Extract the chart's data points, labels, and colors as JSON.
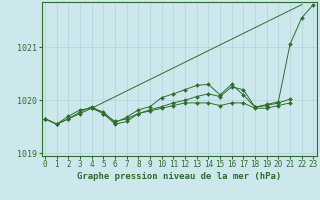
{
  "title": "Graphe pression niveau de la mer (hPa)",
  "hours": [
    0,
    1,
    2,
    3,
    4,
    5,
    6,
    7,
    8,
    9,
    10,
    11,
    12,
    13,
    14,
    15,
    16,
    17,
    18,
    19,
    20,
    21,
    22,
    23
  ],
  "series_smooth": [
    1019.65,
    1019.55,
    1019.65,
    1019.75,
    1019.85,
    1019.75,
    1019.6,
    1019.65,
    1019.75,
    1019.8,
    1019.85,
    1019.9,
    1019.95,
    1019.95,
    1019.95,
    1019.9,
    1019.95,
    1019.95,
    1019.85,
    1019.85,
    1019.9,
    1019.95,
    null,
    null
  ],
  "series_mid": [
    1019.65,
    1019.55,
    1019.65,
    1019.78,
    1019.88,
    1019.75,
    1019.55,
    1019.6,
    1019.75,
    1019.82,
    1019.88,
    1019.95,
    1020.0,
    1020.07,
    1020.12,
    1020.07,
    1020.25,
    1020.2,
    1019.87,
    1019.9,
    1019.95,
    1020.02,
    null,
    null
  ],
  "series_high": [
    1019.65,
    1019.55,
    1019.7,
    1019.82,
    1019.85,
    1019.78,
    1019.58,
    1019.68,
    1019.82,
    1019.88,
    1020.05,
    1020.12,
    1020.2,
    1020.28,
    1020.3,
    1020.1,
    1020.3,
    1020.1,
    1019.87,
    1019.92,
    1019.97,
    1021.05,
    1021.55,
    1021.8
  ],
  "series_trend": [
    null,
    null,
    null,
    null,
    1019.85,
    null,
    null,
    null,
    null,
    null,
    null,
    null,
    null,
    null,
    null,
    null,
    null,
    null,
    null,
    null,
    null,
    null,
    1021.8,
    null
  ],
  "ylim_bottom": 1018.95,
  "ylim_top": 1021.85,
  "yticks": [
    1019,
    1020,
    1021
  ],
  "xlim_left": -0.3,
  "xlim_right": 23.3,
  "bg_color": "#cce8ec",
  "line_color": "#2d6e2d",
  "grid_color": "#b0d4d8",
  "title_fontsize": 6.5,
  "tick_fontsize": 5.5
}
